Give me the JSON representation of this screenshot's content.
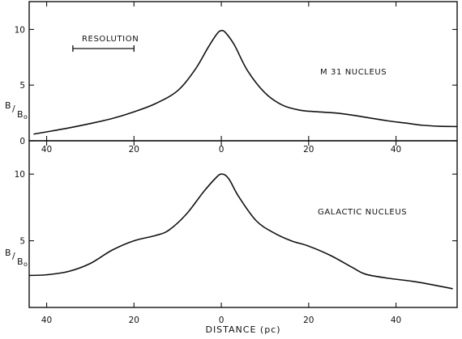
{
  "chart_data": [
    {
      "type": "line",
      "annotation": "M 31 NUCLEUS",
      "resolution_label": "RESOLUTION",
      "resolution_span_pc": [
        -34,
        -20
      ],
      "ylabel": "B",
      "ylabel_sub": "B",
      "ylabel_sub_index": "o",
      "xlim": [
        -44,
        54
      ],
      "ylim": [
        0,
        12.5
      ],
      "x_ticks": [
        -40,
        -20,
        0,
        20,
        40
      ],
      "x_tick_labels": [
        "40",
        "20",
        "0",
        "20",
        "40"
      ],
      "y_ticks": [
        0,
        5,
        10
      ],
      "y_tick_labels": [
        "0",
        "5",
        "10"
      ],
      "x": [
        -43,
        -40,
        -35,
        -30,
        -25,
        -20,
        -15,
        -10,
        -6,
        -3,
        -1,
        0,
        1,
        3,
        6,
        10,
        14,
        18,
        22,
        26,
        30,
        34,
        38,
        42,
        46,
        50,
        54
      ],
      "y": [
        0.6,
        0.8,
        1.15,
        1.55,
        2.0,
        2.6,
        3.35,
        4.5,
        6.4,
        8.4,
        9.6,
        9.9,
        9.7,
        8.6,
        6.3,
        4.3,
        3.2,
        2.75,
        2.6,
        2.5,
        2.3,
        2.05,
        1.8,
        1.6,
        1.4,
        1.3,
        1.28
      ]
    },
    {
      "type": "line",
      "annotation": "GALACTIC NUCLEUS",
      "ylabel": "B",
      "ylabel_sub": "B",
      "ylabel_sub_index": "o",
      "xlabel": "DISTANCE (pc)",
      "xlim": [
        -44,
        54
      ],
      "ylim": [
        0,
        12.5
      ],
      "x_ticks": [
        -40,
        -20,
        0,
        20,
        40
      ],
      "x_tick_labels": [
        "40",
        "20",
        "0",
        "20",
        "40"
      ],
      "y_ticks": [
        5,
        10
      ],
      "y_tick_labels": [
        "5",
        "10"
      ],
      "x": [
        -44,
        -40,
        -35,
        -30,
        -25,
        -20,
        -15,
        -12,
        -8,
        -4,
        -1,
        0,
        1,
        2,
        4,
        8,
        12,
        16,
        20,
        25,
        30,
        33,
        38,
        45,
        53
      ],
      "y": [
        2.4,
        2.45,
        2.7,
        3.3,
        4.3,
        5.0,
        5.4,
        5.8,
        7.0,
        8.7,
        9.8,
        10.0,
        9.9,
        9.5,
        8.3,
        6.5,
        5.6,
        5.0,
        4.6,
        3.9,
        3.0,
        2.5,
        2.2,
        1.9,
        1.4
      ]
    }
  ]
}
